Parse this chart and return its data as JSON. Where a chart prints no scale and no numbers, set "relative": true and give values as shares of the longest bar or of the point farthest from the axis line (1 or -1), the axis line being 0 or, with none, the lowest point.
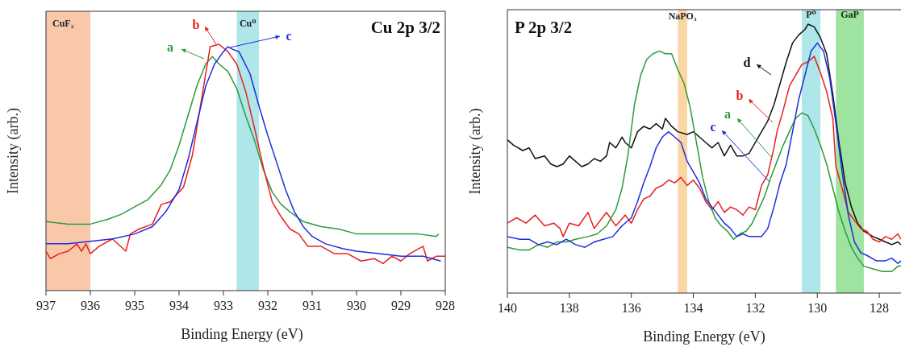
{
  "chart_data": [
    {
      "type": "line",
      "legend": "top",
      "title": "Cu 2p 3/2",
      "xlabel": "Binding Energy (eV)",
      "ylabel": "Intensity (arb.)",
      "relative": true,
      "xlim": [
        937,
        928
      ],
      "xticks": [
        937,
        936,
        935,
        934,
        933,
        932,
        931,
        930,
        929,
        928
      ],
      "bands": [
        {
          "axis": "x",
          "from": 937,
          "to": 936,
          "label": "CuF₂",
          "color": "#f9c8a8"
        },
        {
          "axis": "x",
          "from": 932.7,
          "to": 932.2,
          "label": "Cu⁰",
          "color": "#aee6ea"
        }
      ],
      "series": [
        {
          "name": "a",
          "color": "#2e9a3a",
          "x": [
            937,
            936.5,
            936.2,
            936,
            935.6,
            935.3,
            935,
            934.7,
            934.4,
            934.2,
            934,
            933.8,
            933.6,
            933.4,
            933.25,
            933.1,
            932.9,
            932.7,
            932.5,
            932.3,
            932.1,
            931.9,
            931.7,
            931.5,
            931.2,
            930.8,
            930.4,
            930,
            929.5,
            929,
            928.6,
            928.2,
            928.15
          ],
          "values": [
            0.28,
            0.27,
            0.27,
            0.27,
            0.29,
            0.31,
            0.34,
            0.37,
            0.43,
            0.49,
            0.59,
            0.71,
            0.83,
            0.92,
            0.95,
            0.92,
            0.89,
            0.82,
            0.71,
            0.61,
            0.49,
            0.4,
            0.35,
            0.32,
            0.28,
            0.26,
            0.25,
            0.23,
            0.23,
            0.23,
            0.23,
            0.22,
            0.23
          ]
        },
        {
          "name": "b",
          "color": "#e8201e",
          "x": [
            937,
            936.9,
            936.7,
            936.5,
            936.3,
            936.2,
            936.1,
            936,
            935.8,
            935.5,
            935.2,
            935.1,
            934.9,
            934.6,
            934.4,
            934.2,
            934,
            933.9,
            933.7,
            933.5,
            933.3,
            933.1,
            932.9,
            932.7,
            932.5,
            932.3,
            932.1,
            931.9,
            931.7,
            931.5,
            931.3,
            931.1,
            930.8,
            930.5,
            930.2,
            929.9,
            929.6,
            929.4,
            929.2,
            929,
            928.8,
            928.5,
            928.4,
            928.2,
            928
          ],
          "values": [
            0.16,
            0.13,
            0.15,
            0.16,
            0.19,
            0.16,
            0.19,
            0.15,
            0.18,
            0.21,
            0.16,
            0.23,
            0.25,
            0.27,
            0.35,
            0.36,
            0.4,
            0.42,
            0.55,
            0.77,
            0.99,
            1.0,
            0.97,
            0.92,
            0.81,
            0.66,
            0.5,
            0.36,
            0.3,
            0.25,
            0.23,
            0.18,
            0.18,
            0.15,
            0.15,
            0.12,
            0.13,
            0.11,
            0.14,
            0.12,
            0.15,
            0.18,
            0.12,
            0.14,
            0.14
          ]
        },
        {
          "name": "c",
          "color": "#1f2de0",
          "x": [
            937,
            936.5,
            936,
            935.5,
            935,
            934.6,
            934.3,
            934,
            933.8,
            933.6,
            933.4,
            933.2,
            933,
            932.9,
            932.8,
            932.65,
            932.4,
            932.2,
            932,
            931.8,
            931.6,
            931.4,
            931.2,
            931,
            930.7,
            930.3,
            930,
            929.5,
            929,
            928.5,
            928.1
          ],
          "values": [
            0.19,
            0.19,
            0.2,
            0.21,
            0.23,
            0.26,
            0.32,
            0.41,
            0.53,
            0.68,
            0.83,
            0.92,
            0.97,
            0.99,
            0.98,
            0.97,
            0.88,
            0.75,
            0.63,
            0.52,
            0.41,
            0.32,
            0.26,
            0.22,
            0.19,
            0.17,
            0.16,
            0.15,
            0.14,
            0.14,
            0.12
          ]
        }
      ]
    },
    {
      "type": "line",
      "legend": "right",
      "title": "P 2p 3/2",
      "xlabel": "Binding Energy (eV)",
      "ylabel": "Intensity (arb.)",
      "relative": true,
      "xlim": [
        140,
        127.3
      ],
      "xticks": [
        140,
        138,
        136,
        134,
        132,
        130,
        128
      ],
      "bands": [
        {
          "axis": "x",
          "from": 134.5,
          "to": 134.2,
          "label": "NaPO₃",
          "color": "#f9d6a4"
        },
        {
          "axis": "x",
          "from": 130.5,
          "to": 129.9,
          "label": "P⁰",
          "color": "#aee6ea"
        },
        {
          "axis": "x",
          "from": 129.4,
          "to": 128.5,
          "label": "GaP",
          "color": "#9ee3a0"
        }
      ],
      "series": [
        {
          "name": "d",
          "color": "#111111",
          "x": [
            140,
            139.8,
            139.5,
            139.3,
            139.1,
            138.8,
            138.6,
            138.4,
            138.2,
            138,
            137.8,
            137.6,
            137.4,
            137.2,
            137,
            136.8,
            136.7,
            136.5,
            136.3,
            136.2,
            136,
            135.8,
            135.6,
            135.4,
            135.2,
            135,
            134.9,
            134.7,
            134.5,
            134.2,
            134,
            133.8,
            133.6,
            133.4,
            133.2,
            133,
            132.8,
            132.6,
            132.4,
            132.2,
            132,
            131.8,
            131.6,
            131.4,
            131.2,
            131,
            130.8,
            130.6,
            130.4,
            130.3,
            130.1,
            129.9,
            129.7,
            129.5,
            129.3,
            129.1,
            128.9,
            128.7,
            128.5,
            128.2,
            128,
            127.8,
            127.6,
            127.4,
            127.3
          ],
          "values": [
            0.57,
            0.55,
            0.53,
            0.54,
            0.5,
            0.51,
            0.48,
            0.47,
            0.48,
            0.51,
            0.49,
            0.47,
            0.48,
            0.5,
            0.49,
            0.51,
            0.56,
            0.54,
            0.58,
            0.56,
            0.54,
            0.6,
            0.62,
            0.61,
            0.63,
            0.61,
            0.65,
            0.62,
            0.6,
            0.59,
            0.6,
            0.58,
            0.56,
            0.54,
            0.56,
            0.51,
            0.55,
            0.51,
            0.51,
            0.52,
            0.56,
            0.6,
            0.64,
            0.7,
            0.78,
            0.86,
            0.93,
            0.96,
            0.98,
            1.0,
            0.99,
            0.95,
            0.89,
            0.74,
            0.56,
            0.41,
            0.32,
            0.26,
            0.23,
            0.21,
            0.2,
            0.19,
            0.18,
            0.19,
            0.18
          ]
        },
        {
          "name": "b",
          "color": "#e8201e",
          "x": [
            140,
            139.7,
            139.4,
            139.1,
            138.8,
            138.5,
            138.3,
            138.2,
            138,
            137.7,
            137.4,
            137.2,
            137,
            136.8,
            136.5,
            136.2,
            136,
            135.8,
            135.6,
            135.4,
            135.2,
            135,
            134.8,
            134.6,
            134.4,
            134.2,
            134,
            133.8,
            133.6,
            133.4,
            133.2,
            133,
            132.8,
            132.6,
            132.4,
            132.2,
            132,
            131.8,
            131.6,
            131.4,
            131.3,
            131.1,
            130.9,
            130.7,
            130.5,
            130.3,
            130.1,
            129.9,
            129.7,
            129.5,
            129.4,
            129.2,
            129,
            128.8,
            128.6,
            128.4,
            128.2,
            128,
            127.8,
            127.6,
            127.4,
            127.3
          ],
          "values": [
            0.26,
            0.28,
            0.26,
            0.29,
            0.25,
            0.26,
            0.24,
            0.21,
            0.26,
            0.25,
            0.3,
            0.24,
            0.27,
            0.3,
            0.25,
            0.29,
            0.26,
            0.31,
            0.35,
            0.36,
            0.39,
            0.4,
            0.42,
            0.41,
            0.43,
            0.4,
            0.42,
            0.39,
            0.34,
            0.31,
            0.34,
            0.3,
            0.32,
            0.31,
            0.29,
            0.32,
            0.31,
            0.4,
            0.44,
            0.54,
            0.6,
            0.68,
            0.77,
            0.81,
            0.85,
            0.86,
            0.88,
            0.82,
            0.75,
            0.65,
            0.47,
            0.39,
            0.3,
            0.27,
            0.24,
            0.23,
            0.2,
            0.19,
            0.21,
            0.2,
            0.22,
            0.2
          ]
        },
        {
          "name": "a",
          "color": "#2e9a3a",
          "x": [
            140,
            139.6,
            139.3,
            139,
            138.7,
            138.4,
            138.1,
            137.8,
            137.4,
            137.1,
            136.8,
            136.5,
            136.3,
            136.1,
            135.9,
            135.7,
            135.5,
            135.3,
            135.1,
            134.9,
            134.7,
            134.5,
            134.3,
            134.1,
            133.9,
            133.7,
            133.5,
            133.3,
            133.1,
            132.9,
            132.7,
            132.5,
            132.3,
            132.1,
            131.9,
            131.7,
            131.5,
            131.3,
            131.1,
            130.9,
            130.7,
            130.5,
            130.3,
            130.1,
            129.9,
            129.7,
            129.5,
            129.3,
            129.1,
            128.9,
            128.7,
            128.5,
            128.2,
            127.9,
            127.6,
            127.4,
            127.3
          ],
          "values": [
            0.17,
            0.16,
            0.16,
            0.18,
            0.17,
            0.19,
            0.19,
            0.2,
            0.21,
            0.22,
            0.25,
            0.31,
            0.39,
            0.52,
            0.7,
            0.81,
            0.87,
            0.89,
            0.9,
            0.89,
            0.89,
            0.83,
            0.78,
            0.69,
            0.56,
            0.43,
            0.34,
            0.28,
            0.25,
            0.23,
            0.2,
            0.22,
            0.23,
            0.26,
            0.31,
            0.36,
            0.43,
            0.49,
            0.55,
            0.6,
            0.65,
            0.67,
            0.66,
            0.61,
            0.55,
            0.48,
            0.39,
            0.3,
            0.23,
            0.17,
            0.13,
            0.1,
            0.09,
            0.08,
            0.08,
            0.1,
            0.1
          ]
        },
        {
          "name": "c",
          "color": "#1f2de0",
          "x": [
            140,
            139.6,
            139.3,
            139,
            138.7,
            138.4,
            138.1,
            137.8,
            137.5,
            137.2,
            136.9,
            136.6,
            136.3,
            136,
            135.8,
            135.6,
            135.4,
            135.2,
            135,
            134.8,
            134.6,
            134.4,
            134.2,
            134,
            133.8,
            133.6,
            133.4,
            133.2,
            133,
            132.8,
            132.6,
            132.4,
            132.2,
            132,
            131.8,
            131.6,
            131.4,
            131.2,
            131,
            130.8,
            130.6,
            130.4,
            130.2,
            130,
            129.8,
            129.6,
            129.4,
            129.2,
            129,
            128.8,
            128.6,
            128.4,
            128.1,
            127.8,
            127.6,
            127.4,
            127.3
          ],
          "values": [
            0.21,
            0.2,
            0.2,
            0.18,
            0.19,
            0.18,
            0.2,
            0.18,
            0.17,
            0.19,
            0.2,
            0.21,
            0.25,
            0.28,
            0.34,
            0.41,
            0.47,
            0.54,
            0.58,
            0.6,
            0.58,
            0.56,
            0.49,
            0.45,
            0.41,
            0.35,
            0.32,
            0.29,
            0.26,
            0.24,
            0.21,
            0.22,
            0.21,
            0.21,
            0.21,
            0.24,
            0.32,
            0.41,
            0.48,
            0.6,
            0.72,
            0.81,
            0.9,
            0.93,
            0.9,
            0.8,
            0.63,
            0.45,
            0.29,
            0.19,
            0.15,
            0.14,
            0.12,
            0.12,
            0.13,
            0.11,
            0.12
          ]
        }
      ]
    }
  ]
}
